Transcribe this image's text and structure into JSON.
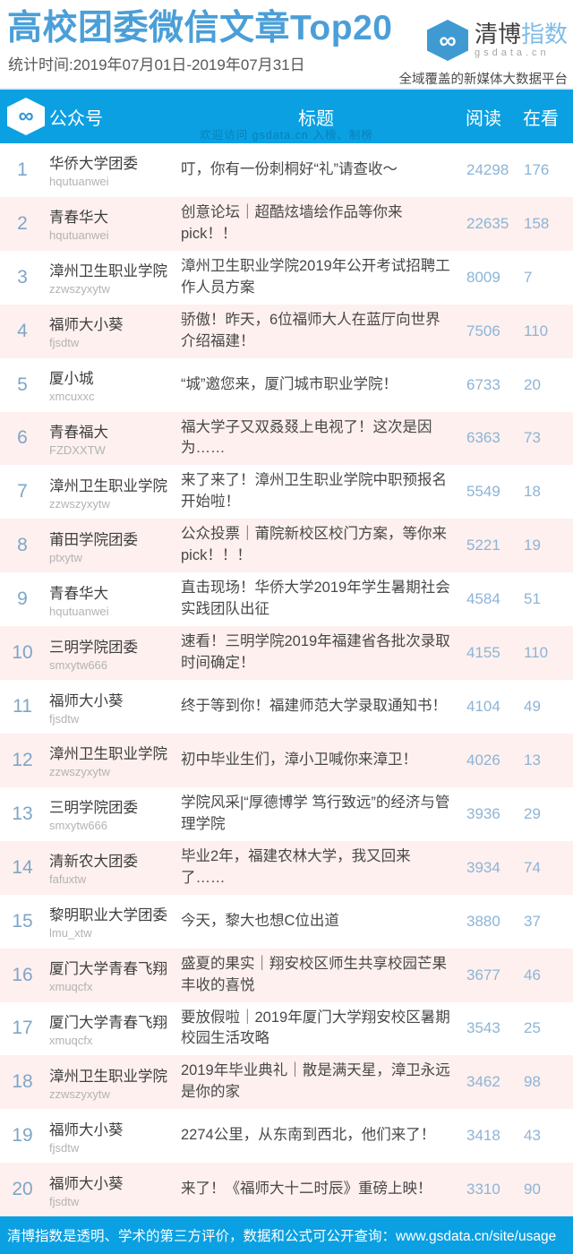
{
  "header": {
    "title": "高校团委微信文章Top20",
    "subtitle": "统计时间:2019年07月01日-2019年07月31日",
    "logo": {
      "symbol": "∞",
      "brand_dark": "清博",
      "brand_light": "指数",
      "domain": "gsdata.cn",
      "tagline": "全域覆盖的新媒体大数据平台"
    }
  },
  "table": {
    "columns": {
      "account": "公众号",
      "title": "标题",
      "reads": "阅读",
      "looks": "在看"
    },
    "watermark": "欢迎访问 gsdata.cn 入榜、制榜",
    "rows": [
      {
        "rank": 1,
        "account": "华侨大学团委",
        "account_id": "hqutuanwei",
        "title": "叮，你有一份刺桐好“礼”请查收～",
        "reads": 24298,
        "looks": 176
      },
      {
        "rank": 2,
        "account": "青春华大",
        "account_id": "hqutuanwei",
        "title": "创意论坛｜超酷炫墙绘作品等你来pick！！",
        "reads": 22635,
        "looks": 158
      },
      {
        "rank": 3,
        "account": "漳州卫生职业学院",
        "account_id": "zzwszyxytw",
        "title": "漳州卫生职业学院2019年公开考试招聘工作人员方案",
        "reads": 8009,
        "looks": 7
      },
      {
        "rank": 4,
        "account": "福师大小葵",
        "account_id": "fjsdtw",
        "title": "骄傲！昨天，6位福师大人在蓝厅向世界介绍福建！",
        "reads": 7506,
        "looks": 110
      },
      {
        "rank": 5,
        "account": "厦小城",
        "account_id": "xmcuxxc",
        "title": "“城”邀您来，厦门城市职业学院！",
        "reads": 6733,
        "looks": 20
      },
      {
        "rank": 6,
        "account": "青春福大",
        "account_id": "FZDXXTW",
        "title": "福大学子又双叒叕上电视了！这次是因为……",
        "reads": 6363,
        "looks": 73
      },
      {
        "rank": 7,
        "account": "漳州卫生职业学院",
        "account_id": "zzwszyxytw",
        "title": "来了来了！漳州卫生职业学院中职预报名开始啦！",
        "reads": 5549,
        "looks": 18
      },
      {
        "rank": 8,
        "account": "莆田学院团委",
        "account_id": "ptxytw",
        "title": "公众投票｜莆院新校区校门方案，等你来pick！！！",
        "reads": 5221,
        "looks": 19
      },
      {
        "rank": 9,
        "account": "青春华大",
        "account_id": "hqutuanwei",
        "title": "直击现场！华侨大学2019年学生暑期社会实践团队出征",
        "reads": 4584,
        "looks": 51
      },
      {
        "rank": 10,
        "account": "三明学院团委",
        "account_id": "smxytw666",
        "title": "速看！三明学院2019年福建省各批次录取时间确定！",
        "reads": 4155,
        "looks": 110
      },
      {
        "rank": 11,
        "account": "福师大小葵",
        "account_id": "fjsdtw",
        "title": "终于等到你！福建师范大学录取通知书！",
        "reads": 4104,
        "looks": 49
      },
      {
        "rank": 12,
        "account": "漳州卫生职业学院",
        "account_id": "zzwszyxytw",
        "title": "初中毕业生们，漳小卫喊你来漳卫！",
        "reads": 4026,
        "looks": 13
      },
      {
        "rank": 13,
        "account": "三明学院团委",
        "account_id": "smxytw666",
        "title": "学院风采|“厚德博学 笃行致远”的经济与管理学院",
        "reads": 3936,
        "looks": 29
      },
      {
        "rank": 14,
        "account": "清新农大团委",
        "account_id": "fafuxtw",
        "title": "毕业2年，福建农林大学，我又回来了……",
        "reads": 3934,
        "looks": 74
      },
      {
        "rank": 15,
        "account": "黎明职业大学团委",
        "account_id": "lmu_xtw",
        "title": "今天，黎大也想C位出道",
        "reads": 3880,
        "looks": 37
      },
      {
        "rank": 16,
        "account": "厦门大学青春飞翔",
        "account_id": "xmuqcfx",
        "title": "盛夏的果实｜翔安校区师生共享校园芒果丰收的喜悦",
        "reads": 3677,
        "looks": 46
      },
      {
        "rank": 17,
        "account": "厦门大学青春飞翔",
        "account_id": "xmuqcfx",
        "title": "要放假啦｜2019年厦门大学翔安校区暑期校园生活攻略",
        "reads": 3543,
        "looks": 25
      },
      {
        "rank": 18,
        "account": "漳州卫生职业学院",
        "account_id": "zzwszyxytw",
        "title": "2019年毕业典礼｜散是满天星，漳卫永远是你的家",
        "reads": 3462,
        "looks": 98
      },
      {
        "rank": 19,
        "account": "福师大小葵",
        "account_id": "fjsdtw",
        "title": "2274公里，从东南到西北，他们来了！",
        "reads": 3418,
        "looks": 43
      },
      {
        "rank": 20,
        "account": "福师大小葵",
        "account_id": "fjsdtw",
        "title": "来了！《福师大十二时辰》重磅上映！",
        "reads": 3310,
        "looks": 90
      }
    ]
  },
  "footer": {
    "text": "清博指数是透明、学术的第三方评价，数据和公式可公开查询：www.gsdata.cn/site/usage"
  },
  "colors": {
    "accent_blue": "#0ba0e2",
    "title_blue": "#4a9fd8",
    "alt_row_pink": "#fdf0ee",
    "number_blue": "#8db4d6",
    "logo_hex_blue": "#3f9ad2"
  }
}
